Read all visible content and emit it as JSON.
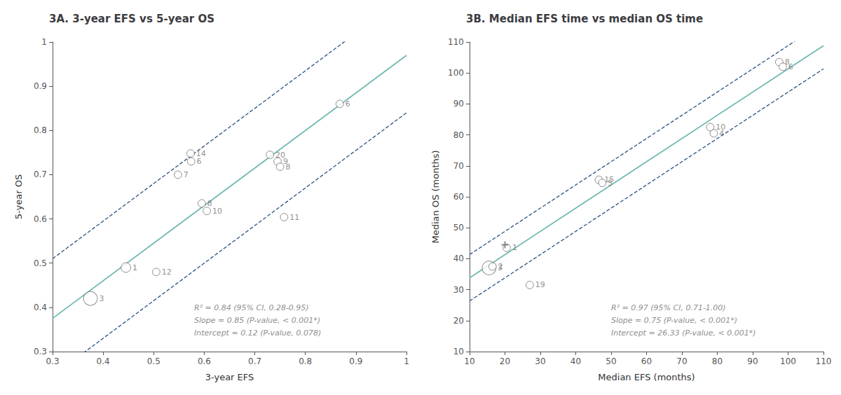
{
  "chart_data": [
    {
      "type": "scatter",
      "title": "3A. 3-year EFS vs 5-year OS",
      "xlabel": "3-year EFS",
      "ylabel": "5-year OS",
      "xlim": [
        0.3,
        1.0
      ],
      "ylim": [
        0.3,
        1.0
      ],
      "xticks": [
        0.3,
        0.4,
        0.5,
        0.6,
        0.7,
        0.8,
        0.9,
        1.0
      ],
      "yticks": [
        0.3,
        0.4,
        0.5,
        0.6,
        0.7,
        0.8,
        0.9,
        1.0
      ],
      "grid": false,
      "series": [
        {
          "type": "line",
          "slope": 0.85,
          "intercept": 0.255,
          "color": "#2a5280",
          "line_style": "dashed"
        },
        {
          "type": "line",
          "slope": 0.85,
          "intercept": -0.01,
          "color": "#2a5280",
          "line_style": "dashed"
        },
        {
          "type": "line",
          "slope": 0.85,
          "intercept": 0.12,
          "color": "#6db8b0",
          "line_style": "solid"
        },
        {
          "type": "scatter",
          "marker": "circle",
          "color": "#707070",
          "x": [
            0.375,
            0.445,
            0.505,
            0.548,
            0.573,
            0.574,
            0.595,
            0.605,
            0.73,
            0.745,
            0.75,
            0.758,
            0.868
          ],
          "y": [
            0.42,
            0.49,
            0.48,
            0.7,
            0.748,
            0.73,
            0.635,
            0.618,
            0.745,
            0.73,
            0.718,
            0.604,
            0.86
          ],
          "labels": [
            "3",
            "1",
            "12",
            "7",
            "14",
            "6",
            "8",
            "10",
            "20",
            "9",
            "8",
            "11",
            "6"
          ],
          "sizes": [
            200,
            100,
            60,
            60,
            60,
            60,
            60,
            60,
            60,
            60,
            60,
            60,
            60
          ]
        }
      ],
      "annotation": "R² = 0.84 (95% CI, 0.28-0.95)\nSlope = 0.85 (P-value, < 0.001*)\nIntercept = 0.12 (P-value, 0.078)"
    },
    {
      "type": "scatter",
      "title": "3B. Median EFS time vs median OS time",
      "xlabel": "Median EFS (months)",
      "ylabel": "Median OS (months)",
      "xlim": [
        10,
        110
      ],
      "ylim": [
        10,
        110
      ],
      "xticks": [
        10,
        20,
        30,
        40,
        50,
        60,
        70,
        80,
        90,
        100,
        110
      ],
      "yticks": [
        10,
        20,
        30,
        40,
        50,
        60,
        70,
        80,
        90,
        100,
        110
      ],
      "grid": false,
      "series": [
        {
          "type": "line",
          "slope": 0.75,
          "intercept": 33.83,
          "color": "#2a5280",
          "line_style": "dashed"
        },
        {
          "type": "line",
          "slope": 0.75,
          "intercept": 18.83,
          "color": "#2a5280",
          "line_style": "dashed"
        },
        {
          "type": "line",
          "slope": 0.75,
          "intercept": 26.33,
          "color": "#6db8b0",
          "line_style": "solid"
        },
        {
          "type": "scatter",
          "marker": "circle",
          "color": "#707070",
          "x": [
            15.5,
            20.5,
            16.5,
            27.0,
            46.5,
            47.5,
            78.0,
            79.0,
            97.5,
            98.5
          ],
          "y": [
            37.0,
            43.5,
            37.5,
            31.5,
            65.5,
            64.5,
            82.5,
            80.5,
            103.5,
            102.0
          ],
          "labels": [
            "3",
            "1",
            "2",
            "19",
            "15",
            "5",
            "10",
            "4",
            "8",
            "6"
          ],
          "sizes": [
            200,
            60,
            60,
            60,
            60,
            60,
            60,
            60,
            60,
            60
          ]
        },
        {
          "type": "scatter",
          "marker": "plus",
          "color": "#707070",
          "x": [
            20.0
          ],
          "y": [
            44.5
          ]
        }
      ],
      "annotation": "R² = 0.97 (95% CI, 0.71-1.00)\nSlope = 0.75 (P-value, < 0.001*)\nIntercept = 26.33 (P-value, < 0.001*)"
    }
  ]
}
